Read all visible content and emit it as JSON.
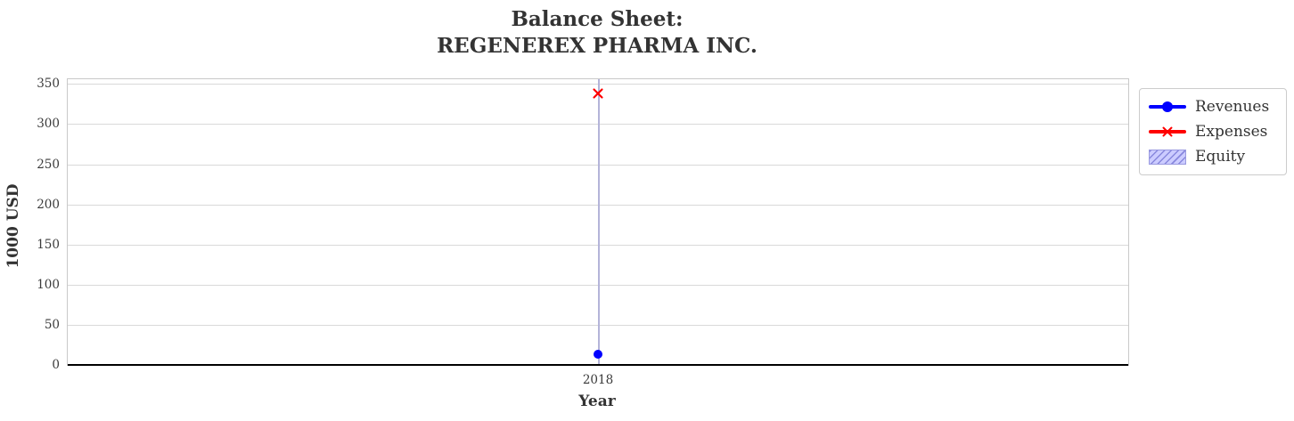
{
  "title": {
    "line1": "Balance Sheet:",
    "line2": "REGENEREX PHARMA INC."
  },
  "chart_data": {
    "type": "line",
    "title": "Balance Sheet: REGENEREX PHARMA INC.",
    "xlabel": "Year",
    "ylabel": "1000 USD",
    "x": [
      2018
    ],
    "xtick_labels": [
      "2018"
    ],
    "yticks": [
      0,
      50,
      100,
      150,
      200,
      250,
      300,
      350
    ],
    "ylim": [
      0,
      356
    ],
    "grid": true,
    "legend_position": "outside-upper-right",
    "series": [
      {
        "name": "Revenues",
        "values": [
          13
        ],
        "color": "#0000ff",
        "marker": "circle"
      },
      {
        "name": "Expenses",
        "values": [
          338
        ],
        "color": "#ff0000",
        "marker": "x"
      },
      {
        "name": "Equity",
        "values": [],
        "color": "#ccccff",
        "hatch_color": "#8888dd",
        "style": "hatched-area"
      }
    ]
  },
  "legend": {
    "items": [
      {
        "label": "Revenues"
      },
      {
        "label": "Expenses"
      },
      {
        "label": "Equity"
      }
    ]
  },
  "colors": {
    "text": "#333333",
    "tick_text": "#3a3a3a",
    "grid_horizontal": "#d9d9d9",
    "grid_vertical": "#b4b4d9",
    "spine": "#c9c9c9",
    "zero_line": "#000000",
    "background": "#ffffff",
    "revenues": "#0000ff",
    "expenses": "#ff0000",
    "equity_fill": "#ccccff",
    "equity_hatch": "#8888dd"
  }
}
